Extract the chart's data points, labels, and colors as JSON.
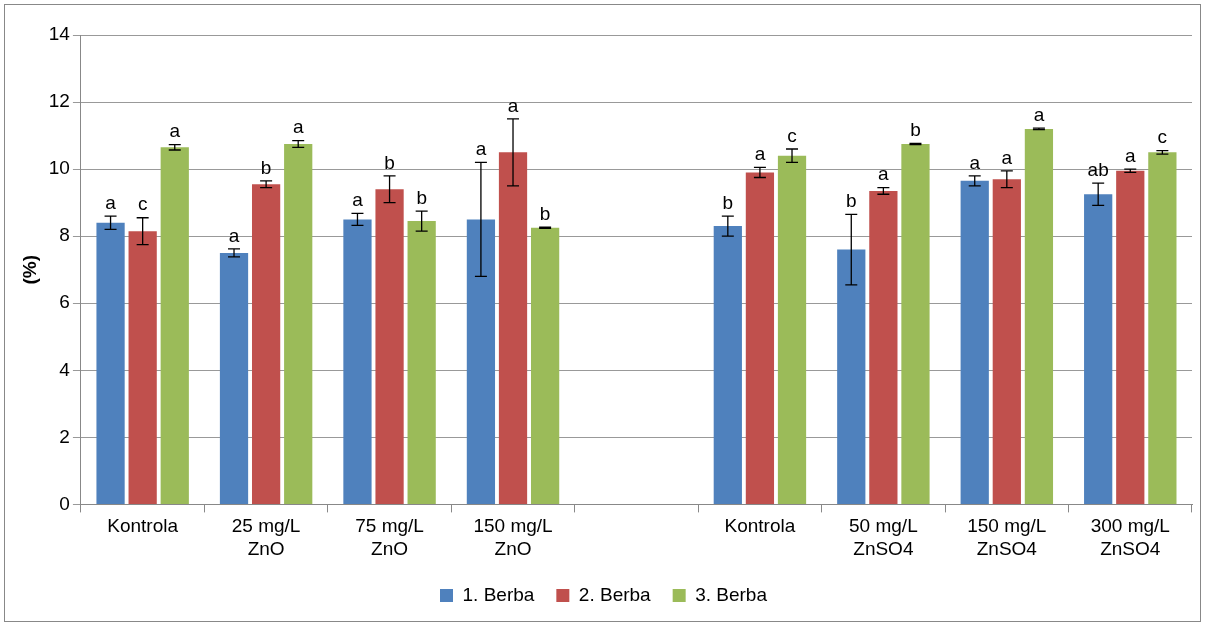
{
  "chart_data": {
    "type": "bar",
    "ylabel": "(%)",
    "categories": [
      "Kontrola",
      "25 mg/L ZnO",
      "75 mg/L ZnO",
      "150 mg/L ZnO",
      null,
      "Kontrola",
      "50 mg/L ZnSO4",
      "150 mg/L ZnSO4",
      "300 mg/L ZnSO4"
    ],
    "series": [
      {
        "name": "1. Berba",
        "color": "#4f81bd",
        "values": [
          8.4,
          7.5,
          8.5,
          8.5,
          null,
          8.3,
          7.6,
          9.65,
          9.25
        ],
        "errors": [
          0.2,
          0.12,
          0.18,
          1.7,
          null,
          0.3,
          1.05,
          0.15,
          0.33
        ],
        "value_labels": [
          "a",
          "a",
          "a",
          "a",
          null,
          "b",
          "b",
          "a",
          "ab"
        ]
      },
      {
        "name": "2. Berba",
        "color": "#c0504d",
        "values": [
          8.15,
          9.55,
          9.4,
          10.5,
          null,
          9.9,
          9.35,
          9.7,
          9.95
        ],
        "errors": [
          0.4,
          0.1,
          0.4,
          1.0,
          null,
          0.15,
          0.1,
          0.25,
          0.05
        ],
        "value_labels": [
          "c",
          "b",
          "b",
          "a",
          null,
          "a",
          "a",
          "a",
          "a"
        ]
      },
      {
        "name": "3. Berba",
        "color": "#9bbb59",
        "values": [
          10.65,
          10.75,
          8.45,
          8.25,
          null,
          10.4,
          10.75,
          11.2,
          10.5
        ],
        "errors": [
          0.08,
          0.1,
          0.3,
          0.02,
          null,
          0.2,
          0.02,
          0.02,
          0.05
        ],
        "value_labels": [
          "a",
          "a",
          "b",
          "b",
          null,
          "c",
          "b",
          "a",
          "c"
        ]
      }
    ],
    "ylim": [
      0,
      14
    ],
    "yticks": [
      0,
      2,
      4,
      6,
      8,
      10,
      12,
      14
    ],
    "grid": "y",
    "legend": "bottom"
  }
}
